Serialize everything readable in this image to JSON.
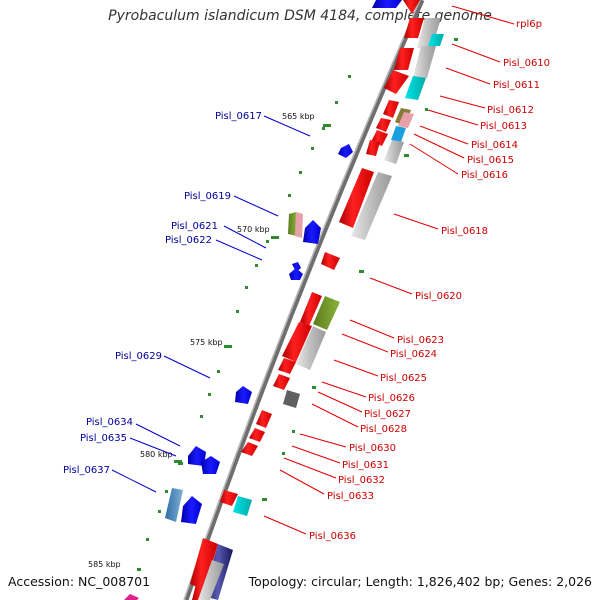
{
  "title": "Pyrobaculum islandicum DSM 4184, complete genome",
  "accession_text": "Accession: NC_008701",
  "topology_text": "Topology: circular; Length: 1,826,402 bp; Genes: 2,026",
  "colors": {
    "forward_gene": "#ff0000",
    "reverse_gene": "#0000ff",
    "forward_label": "#cc0000",
    "reverse_label": "#000099",
    "backbone": "#808080",
    "tick": "#2e8b2e"
  },
  "ticks": [
    {
      "label": "565 kbp"
    },
    {
      "label": "570 kbp"
    },
    {
      "label": "575 kbp"
    },
    {
      "label": "580 kbp"
    },
    {
      "label": "585 kbp"
    }
  ],
  "forward_labels": [
    "rpl6p",
    "Pisl_0610",
    "Pisl_0611",
    "Pisl_0612",
    "Pisl_0613",
    "Pisl_0614",
    "Pisl_0615",
    "Pisl_0616",
    "Pisl_0618",
    "Pisl_0620",
    "Pisl_0623",
    "Pisl_0624",
    "Pisl_0625",
    "Pisl_0626",
    "Pisl_0627",
    "Pisl_0628",
    "Pisl_0630",
    "Pisl_0631",
    "Pisl_0632",
    "Pisl_0633",
    "Pisl_0636"
  ],
  "reverse_labels": [
    "Pisl_0617",
    "Pisl_0619",
    "Pisl_0621",
    "Pisl_0622",
    "Pisl_0629",
    "Pisl_0634",
    "Pisl_0635",
    "Pisl_0637"
  ]
}
